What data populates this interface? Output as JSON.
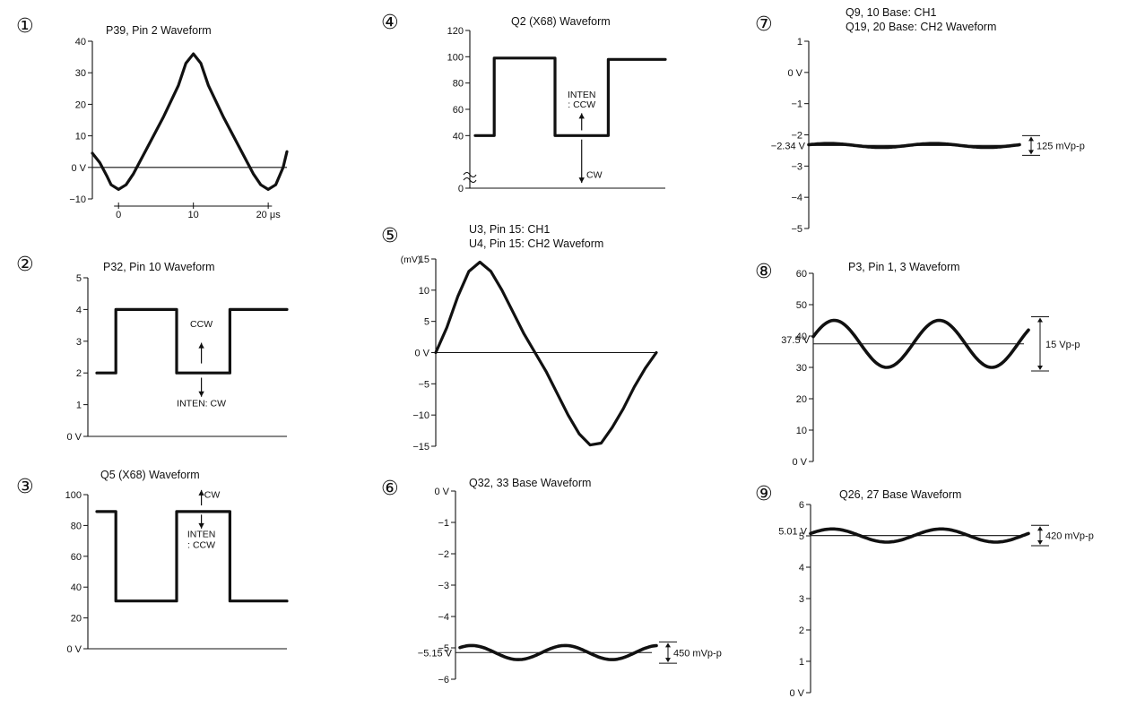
{
  "chart_data": [
    {
      "type": "line",
      "number": "①",
      "title": "P39, Pin 2 Waveform",
      "ylim": [
        -10,
        40
      ],
      "yticks": [
        {
          "v": 40,
          "t": "40"
        },
        {
          "v": 30,
          "t": "30"
        },
        {
          "v": 20,
          "t": "20"
        },
        {
          "v": 10,
          "t": "10"
        },
        {
          "v": 0,
          "t": "0 V"
        },
        {
          "v": -10,
          "t": "−10"
        }
      ],
      "xlim": [
        -3.5,
        22.5
      ],
      "xticks": [
        {
          "v": 0,
          "t": "0"
        },
        {
          "v": 10,
          "t": "10"
        },
        {
          "v": 20,
          "t": "20 μs"
        }
      ],
      "zero_line": 0,
      "series": [
        {
          "x": [
            -3.5,
            -2.5,
            -1.5,
            -1,
            0,
            1,
            2,
            4,
            6,
            8,
            9,
            10,
            11,
            12,
            14,
            16,
            18,
            19,
            20,
            21,
            22,
            22.5
          ],
          "y": [
            4.5,
            1.5,
            -3,
            -5.5,
            -7,
            -5.5,
            -2,
            7,
            16,
            26,
            33,
            36,
            33,
            26,
            16,
            7,
            -2,
            -5.5,
            -7,
            -5.5,
            0,
            5
          ]
        }
      ]
    },
    {
      "type": "line",
      "number": "②",
      "title": "P32, Pin 10 Waveform",
      "ylim": [
        0,
        5
      ],
      "yticks": [
        {
          "v": 5,
          "t": "5"
        },
        {
          "v": 4,
          "t": "4"
        },
        {
          "v": 3,
          "t": "3"
        },
        {
          "v": 2,
          "t": "2"
        },
        {
          "v": 1,
          "t": "1"
        },
        {
          "v": 0,
          "t": "0 V"
        }
      ],
      "xlim": [
        0,
        10
      ],
      "series": [
        {
          "x": [
            0,
            1,
            1,
            4.2,
            4.2,
            7,
            7,
            10
          ],
          "y": [
            2,
            2,
            4,
            4,
            2,
            2,
            4,
            4
          ]
        }
      ],
      "annotations": [
        {
          "text": "CCW",
          "x": 5.5,
          "y": 3.45,
          "anchor": "middle"
        },
        {
          "text": "INTEN: CW",
          "x": 5.5,
          "y": 0.95,
          "anchor": "middle"
        }
      ],
      "arrows": [
        {
          "x": 5.5,
          "y_from": 2.3,
          "y_to": 2.95
        },
        {
          "x": 5.5,
          "y_from": 1.85,
          "y_to": 1.25
        }
      ]
    },
    {
      "type": "line",
      "number": "③",
      "title": "Q5 (X68) Waveform",
      "ylim": [
        0,
        100
      ],
      "yticks": [
        {
          "v": 100,
          "t": "100"
        },
        {
          "v": 80,
          "t": "80"
        },
        {
          "v": 60,
          "t": "60"
        },
        {
          "v": 40,
          "t": "40"
        },
        {
          "v": 20,
          "t": "20"
        },
        {
          "v": 0,
          "t": "0 V"
        }
      ],
      "xlim": [
        0,
        10
      ],
      "series": [
        {
          "x": [
            0,
            1,
            1,
            4.2,
            4.2,
            7,
            7,
            10
          ],
          "y": [
            89,
            89,
            31,
            31,
            89,
            89,
            31,
            31
          ]
        }
      ],
      "annotations": [
        {
          "text": "CW",
          "x": 5.65,
          "y": 98,
          "anchor": "start"
        },
        {
          "text": "INTEN",
          "x": 5.5,
          "y": 72.5,
          "anchor": "middle"
        },
        {
          "text": ": CCW",
          "x": 5.5,
          "y": 65.5,
          "anchor": "middle"
        }
      ],
      "arrows": [
        {
          "x": 5.5,
          "y_from": 93,
          "y_to": 103
        },
        {
          "x": 5.5,
          "y_from": 87,
          "y_to": 78
        }
      ]
    },
    {
      "type": "line",
      "number": "④",
      "title": "Q2 (X68) Waveform",
      "ylim": [
        0,
        120
      ],
      "yticks": [
        {
          "v": 120,
          "t": "120"
        },
        {
          "v": 100,
          "t": "100"
        },
        {
          "v": 80,
          "t": "80"
        },
        {
          "v": 60,
          "t": "60"
        },
        {
          "v": 40,
          "t": "40"
        },
        {
          "v": 0,
          "t": "0"
        }
      ],
      "xlim": [
        0,
        10
      ],
      "axis_break": true,
      "series": [
        {
          "x": [
            0,
            1,
            1,
            4.2,
            4.2,
            7,
            7,
            10
          ],
          "y": [
            40,
            40,
            99,
            99,
            40,
            40,
            98,
            98
          ]
        }
      ],
      "annotations": [
        {
          "text": "INTEN",
          "x": 5.6,
          "y": 69,
          "anchor": "middle"
        },
        {
          "text": ": CCW",
          "x": 5.6,
          "y": 61.5,
          "anchor": "middle"
        },
        {
          "text": "CW",
          "x": 5.85,
          "y": 8,
          "anchor": "start"
        }
      ],
      "arrows": [
        {
          "x": 5.6,
          "y_from": 44,
          "y_to": 57
        },
        {
          "x": 5.6,
          "y_from": 37,
          "y_to": 4
        }
      ]
    },
    {
      "type": "line",
      "number": "⑤",
      "title": "U3, Pin 15: CH1",
      "subtitle": "U4, Pin 15: CH2 Waveform",
      "ylabel": "(mV)",
      "ylim": [
        -15,
        15
      ],
      "yticks": [
        {
          "v": 15,
          "t": "15"
        },
        {
          "v": 10,
          "t": "10"
        },
        {
          "v": 5,
          "t": "5"
        },
        {
          "v": 0,
          "t": "0 V"
        },
        {
          "v": -5,
          "t": "−5"
        },
        {
          "v": -10,
          "t": "−10"
        },
        {
          "v": -15,
          "t": "−15"
        }
      ],
      "xlim": [
        0,
        10
      ],
      "zero_line": 0,
      "series": [
        {
          "x": [
            0,
            0.5,
            1,
            1.5,
            2,
            2.5,
            3,
            3.5,
            4,
            4.5,
            5,
            5.5,
            6,
            6.5,
            7,
            7.5,
            8,
            8.5,
            9,
            9.5,
            10
          ],
          "y": [
            0,
            4,
            9,
            13,
            14.5,
            13,
            10,
            6.5,
            3,
            0,
            -3,
            -6.5,
            -10,
            -13,
            -14.8,
            -14.5,
            -12,
            -9,
            -5.5,
            -2.5,
            0
          ]
        }
      ]
    },
    {
      "type": "line",
      "number": "⑥",
      "title": "Q32, 33 Base Waveform",
      "ylim": [
        -6,
        0
      ],
      "yticks": [
        {
          "v": 0,
          "t": "0 V"
        },
        {
          "v": -1,
          "t": "−1"
        },
        {
          "v": -2,
          "t": "−2"
        },
        {
          "v": -3,
          "t": "−3"
        },
        {
          "v": -4,
          "t": "−4"
        },
        {
          "v": -5,
          "t": "−5"
        },
        {
          "v": -6,
          "t": "−6"
        }
      ],
      "xlim": [
        0,
        10
      ],
      "ref_line": {
        "value": -5.15,
        "label": "−5.15 V"
      },
      "amplitude": 0.225,
      "cycles": 2.1,
      "phase": 0.25,
      "pp_label": "450 mVp-p",
      "series": []
    },
    {
      "type": "line",
      "number": "⑦",
      "title": "Q9, 10 Base: CH1",
      "subtitle": "Q19, 20 Base: CH2 Waveform",
      "ylim": [
        -5,
        1
      ],
      "yticks": [
        {
          "v": 1,
          "t": "1"
        },
        {
          "v": 0,
          "t": "0 V"
        },
        {
          "v": -1,
          "t": "−1"
        },
        {
          "v": -2,
          "t": "−2"
        },
        {
          "v": -3,
          "t": "−3"
        },
        {
          "v": -4,
          "t": "−4"
        },
        {
          "v": -5,
          "t": "−5"
        }
      ],
      "xlim": [
        0,
        10
      ],
      "ref_line": {
        "value": -2.34,
        "label": "−2.34 V"
      },
      "amplitude": 0.0625,
      "cycles": 2.0,
      "phase": 0.12,
      "pp_label": "125 mVp-p",
      "series": []
    },
    {
      "type": "line",
      "number": "⑧",
      "title": "P3, Pin 1, 3 Waveform",
      "ylim": [
        0,
        60
      ],
      "yticks": [
        {
          "v": 60,
          "t": "60"
        },
        {
          "v": 50,
          "t": "50"
        },
        {
          "v": 40,
          "t": "40"
        },
        {
          "v": 30,
          "t": "30"
        },
        {
          "v": 20,
          "t": "20"
        },
        {
          "v": 10,
          "t": "10"
        },
        {
          "v": 0,
          "t": "0 V"
        }
      ],
      "extra_tick": {
        "v": 37.5,
        "t": "37.5 V"
      },
      "xlim": [
        0,
        10
      ],
      "ref_line": {
        "value": 37.5,
        "label": ""
      },
      "amplitude": 7.5,
      "cycles": 2.05,
      "phase": 0.1,
      "pp_label": "15 Vp-p",
      "series": []
    },
    {
      "type": "line",
      "number": "⑨",
      "title": "Q26, 27 Base Waveform",
      "ylim": [
        0,
        6
      ],
      "yticks": [
        {
          "v": 6,
          "t": "6"
        },
        {
          "v": 5,
          "t": "5"
        },
        {
          "v": 4,
          "t": "4"
        },
        {
          "v": 3,
          "t": "3"
        },
        {
          "v": 2,
          "t": "2"
        },
        {
          "v": 1,
          "t": "1"
        },
        {
          "v": 0,
          "t": "0 V"
        }
      ],
      "extra_tick": {
        "v": 5.01,
        "t": "5.01 V"
      },
      "xlim": [
        0,
        10
      ],
      "ref_line": {
        "value": 5.01,
        "label": ""
      },
      "amplitude": 0.21,
      "cycles": 2.0,
      "phase": 0.1,
      "pp_label": "420 mVp-p",
      "series": []
    }
  ]
}
